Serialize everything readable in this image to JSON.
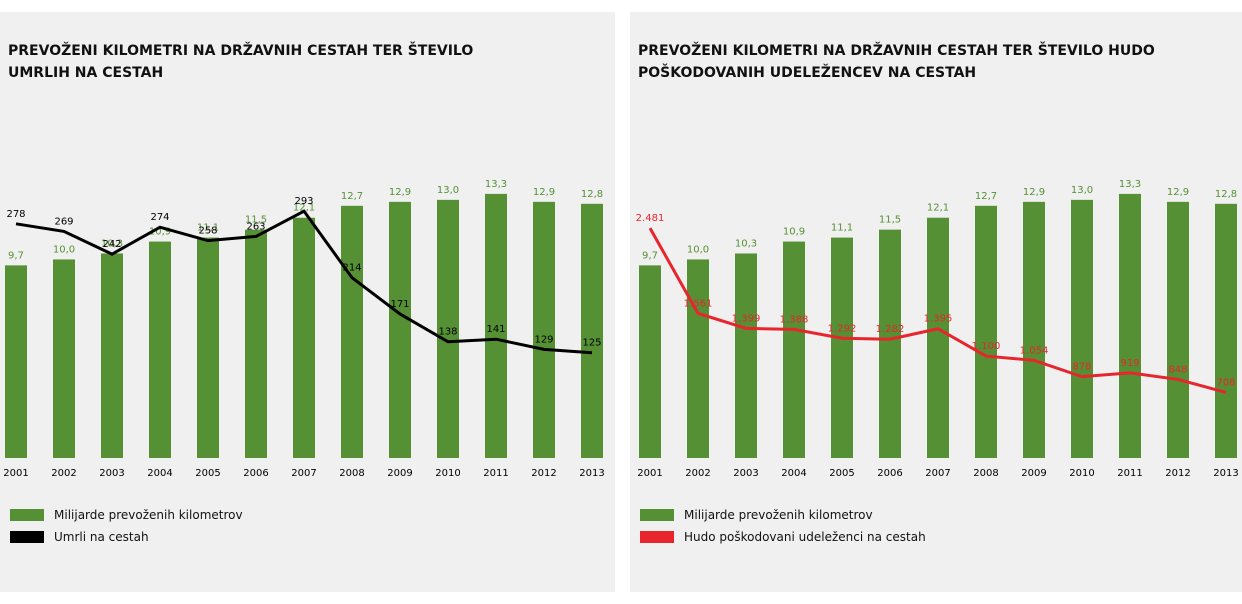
{
  "chart_data": [
    {
      "type": "bar",
      "title": "PREVOŽENI KILOMETRI NA DRŽAVNIH CESTAH TER ŠTEVILO UMRLIH NA CESTAH",
      "categories": [
        "2001",
        "2002",
        "2003",
        "2004",
        "2005",
        "2006",
        "2007",
        "2008",
        "2009",
        "2010",
        "2011",
        "2012",
        "2013"
      ],
      "ylim": [
        0,
        14
      ],
      "y2lim": [
        0,
        330
      ],
      "series": [
        {
          "name": "Milijarde prevoženih kilometrov",
          "color": "#559034",
          "values": [
            9.7,
            10.0,
            10.3,
            10.9,
            11.1,
            11.5,
            12.1,
            12.7,
            12.9,
            13.0,
            13.3,
            12.9,
            12.8
          ],
          "value_labels": [
            "9,7",
            "10,0",
            "10,3",
            "10,9",
            "11,1",
            "11,5",
            "12,1",
            "12,7",
            "12,9",
            "13,0",
            "13,3",
            "12,9",
            "12,8"
          ]
        },
        {
          "name": "Umrli na cestah",
          "color": "#000000",
          "type": "line",
          "axis": "y2",
          "values": [
            278,
            269,
            242,
            274,
            258,
            263,
            293,
            214,
            171,
            138,
            141,
            129,
            125
          ]
        }
      ]
    },
    {
      "type": "bar",
      "title": "PREVOŽENI KILOMETRI NA DRŽAVNIH CESTAH TER ŠTEVILO HUDO POŠKODOVANIH UDELEŽENCEV NA CESTAH",
      "categories": [
        "2001",
        "2002",
        "2003",
        "2004",
        "2005",
        "2006",
        "2007",
        "2008",
        "2009",
        "2010",
        "2011",
        "2012",
        "2013"
      ],
      "ylim": [
        0,
        14
      ],
      "y2lim": [
        0,
        3000
      ],
      "series": [
        {
          "name": "Milijarde prevoženih kilometrov",
          "color": "#559034",
          "values": [
            9.7,
            10.0,
            10.3,
            10.9,
            11.1,
            11.5,
            12.1,
            12.7,
            12.9,
            13.0,
            13.3,
            12.9,
            12.8
          ],
          "value_labels": [
            "9,7",
            "10,0",
            "10,3",
            "10,9",
            "11,1",
            "11,5",
            "12,1",
            "12,7",
            "12,9",
            "13,0",
            "13,3",
            "12,9",
            "12,8"
          ]
        },
        {
          "name": "Hudo poškodovani udeleženci na cestah",
          "color": "#e8252c",
          "type": "line",
          "axis": "y2",
          "values": [
            2481,
            1561,
            1399,
            1388,
            1292,
            1282,
            1395,
            1100,
            1054,
            878,
            919,
            848,
            708
          ],
          "value_labels": [
            "2.481",
            "1.561",
            "1.399",
            "1.388",
            "1.292",
            "1.282",
            "1.395",
            "1.100",
            "1.054",
            "878",
            "919",
            "848",
            "708"
          ]
        }
      ]
    }
  ]
}
